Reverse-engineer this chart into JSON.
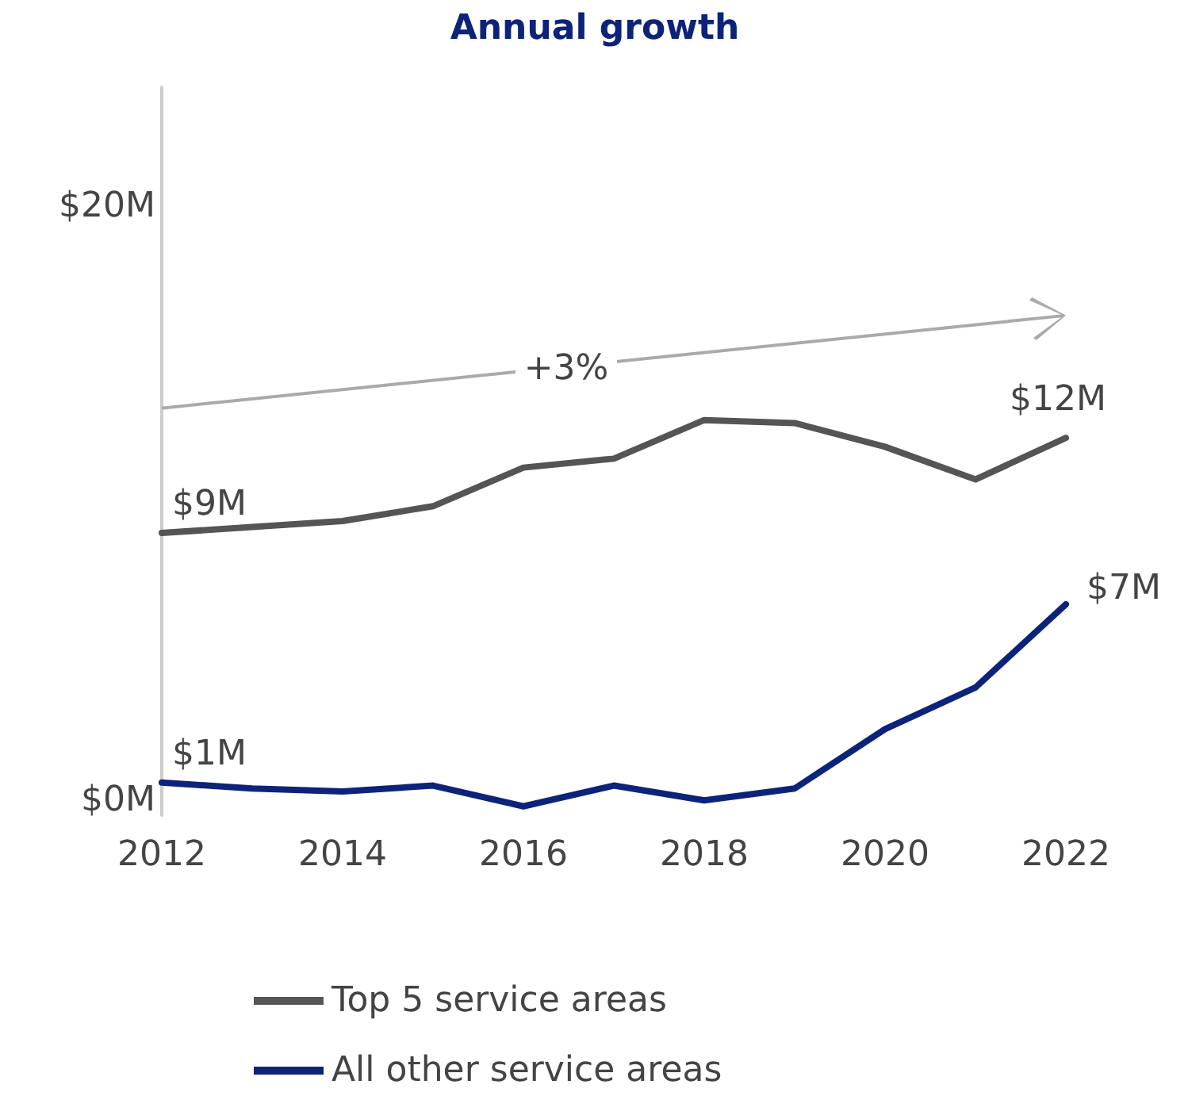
{
  "chart_data": {
    "type": "line",
    "title": "Annual growth",
    "x": [
      2012,
      2013,
      2014,
      2015,
      2016,
      2017,
      2018,
      2019,
      2020,
      2021,
      2022
    ],
    "series": [
      {
        "name": "Top 5 service areas",
        "color": "#555555",
        "values": [
          9.0,
          9.2,
          9.4,
          9.9,
          11.2,
          11.5,
          12.8,
          12.7,
          11.9,
          10.8,
          12.2
        ],
        "value_labels": [
          "$9M",
          null,
          null,
          null,
          null,
          null,
          null,
          null,
          null,
          null,
          "$12M"
        ]
      },
      {
        "name": "All other service areas",
        "color": "#0d237a",
        "values": [
          0.6,
          0.4,
          0.3,
          0.5,
          -0.2,
          0.5,
          0.0,
          0.4,
          2.4,
          3.8,
          6.6
        ],
        "value_labels": [
          "$1M",
          null,
          null,
          null,
          null,
          null,
          null,
          null,
          null,
          null,
          "$7M"
        ]
      }
    ],
    "xlim": [
      2012,
      2022
    ],
    "xticks": [
      2012,
      2014,
      2016,
      2018,
      2020,
      2022
    ],
    "ylim": [
      -0.5,
      24
    ],
    "yticks": [
      {
        "value": 0,
        "label": "$0M"
      },
      {
        "value": 20,
        "label": "$20M"
      }
    ],
    "grid": false,
    "legend": "bottom left",
    "marker": "none",
    "line_style": "solid",
    "annotations": [
      "+3%"
    ]
  }
}
